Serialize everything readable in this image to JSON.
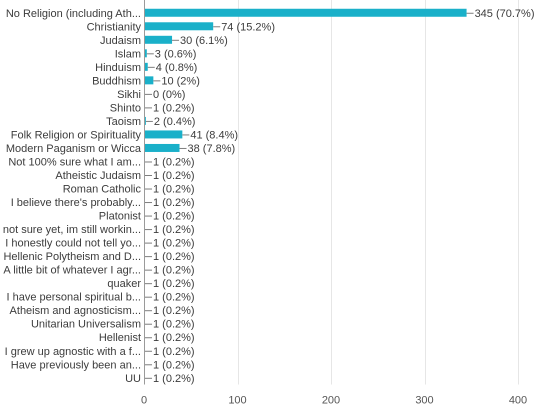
{
  "colors": {
    "bar": "#1ab0c9",
    "grid": "#e6e6e6",
    "axis": "#9a9a9a",
    "text": "#3c3c3c"
  },
  "chart_data": {
    "type": "bar",
    "orientation": "horizontal",
    "title": "",
    "xlabel": "",
    "ylabel": "",
    "xlim": [
      0,
      400
    ],
    "x_ticks": [
      0,
      100,
      200,
      300,
      400
    ],
    "grid": true,
    "categories": [
      "No Religion (including Ath...",
      "Christianity",
      "Judaism",
      "Islam",
      "Hinduism",
      "Buddhism",
      "Sikhi",
      "Shinto",
      "Taoism",
      "Folk Religion or Spirituality",
      "Modern Paganism or Wicca",
      "Not 100% sure what I am...",
      "Atheistic Judaism",
      "Roman Catholic",
      "I believe there's probably...",
      "Platonist",
      "not sure yet, im still workin...",
      "I honestly could not tell yo...",
      "Hellenic Polytheism and D...",
      "A little bit of whatever I agr...",
      "quaker",
      "I have personal spiritual b...",
      "Atheism and agnosticism...",
      "Unitarian Universalism",
      "Hellenist",
      "I grew up agnostic with a f...",
      "Have previously been an...",
      "UU"
    ],
    "values": [
      345,
      74,
      30,
      3,
      4,
      10,
      0,
      1,
      2,
      41,
      38,
      1,
      1,
      1,
      1,
      1,
      1,
      1,
      1,
      1,
      1,
      1,
      1,
      1,
      1,
      1,
      1,
      1
    ],
    "data_labels": [
      "345 (70.7%)",
      "74 (15.2%)",
      "30 (6.1%)",
      "3 (0.6%)",
      "4 (0.8%)",
      "10 (2%)",
      "0 (0%)",
      "1 (0.2%)",
      "2 (0.4%)",
      "41 (8.4%)",
      "38 (7.8%)",
      "1 (0.2%)",
      "1 (0.2%)",
      "1 (0.2%)",
      "1 (0.2%)",
      "1 (0.2%)",
      "1 (0.2%)",
      "1 (0.2%)",
      "1 (0.2%)",
      "1 (0.2%)",
      "1 (0.2%)",
      "1 (0.2%)",
      "1 (0.2%)",
      "1 (0.2%)",
      "1 (0.2%)",
      "1 (0.2%)",
      "1 (0.2%)",
      "1 (0.2%)"
    ]
  }
}
